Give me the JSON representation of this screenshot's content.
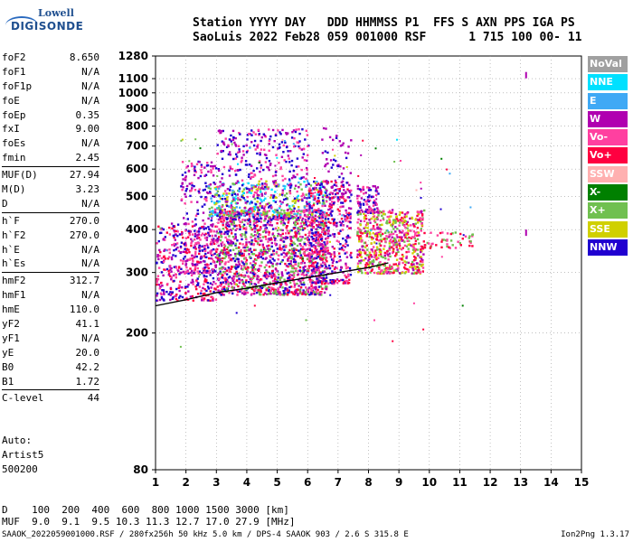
{
  "logo": {
    "line1": "Lowell",
    "line2": "DIGISONDE"
  },
  "header": {
    "line1": "Station YYYY DAY   DDD HHMMSS P1  FFS S AXN PPS IGA PS",
    "line2": "SaoLuis 2022 Feb28 059 001000 RSF      1 715 100 00- 11"
  },
  "params_group1": [
    {
      "k": "foF2",
      "v": "8.650"
    },
    {
      "k": "foF1",
      "v": "N/A"
    },
    {
      "k": "foF1p",
      "v": "N/A"
    },
    {
      "k": "foE",
      "v": "N/A"
    },
    {
      "k": "foEp",
      "v": "0.35"
    },
    {
      "k": "fxI",
      "v": "9.00"
    },
    {
      "k": "foEs",
      "v": "N/A"
    },
    {
      "k": "fmin",
      "v": "2.45"
    }
  ],
  "params_group2": [
    {
      "k": "MUF(D)",
      "v": "27.94"
    },
    {
      "k": "M(D)",
      "v": "3.23"
    },
    {
      "k": "D",
      "v": "N/A"
    }
  ],
  "params_group3": [
    {
      "k": "h`F",
      "v": "270.0"
    },
    {
      "k": "h`F2",
      "v": "270.0"
    },
    {
      "k": "h`E",
      "v": "N/A"
    },
    {
      "k": "h`Es",
      "v": "N/A"
    }
  ],
  "params_group4": [
    {
      "k": "hmF2",
      "v": "312.7"
    },
    {
      "k": "hmF1",
      "v": "N/A"
    },
    {
      "k": "hmE",
      "v": "110.0"
    },
    {
      "k": "yF2",
      "v": "41.1"
    },
    {
      "k": "yF1",
      "v": "N/A"
    },
    {
      "k": "yE",
      "v": "20.0"
    },
    {
      "k": "B0",
      "v": "42.2"
    },
    {
      "k": "B1",
      "v": "1.72"
    }
  ],
  "params_group5": [
    {
      "k": "C-level",
      "v": "44"
    }
  ],
  "auto": {
    "l1": "Auto:",
    "l2": "Artist5",
    "l3": "500200"
  },
  "legend": [
    {
      "label": "NoVal",
      "color": "#a0a0a0"
    },
    {
      "label": "NNE",
      "color": "#00e0ff"
    },
    {
      "label": "E",
      "color": "#3fa9f5"
    },
    {
      "label": "W",
      "color": "#b000b0"
    },
    {
      "label": "Vo-",
      "color": "#ff40a0"
    },
    {
      "label": "Vo+",
      "color": "#ff0040"
    },
    {
      "label": "SSW",
      "color": "#ffb0b0"
    },
    {
      "label": "X-",
      "color": "#008000"
    },
    {
      "label": "X+",
      "color": "#70c050"
    },
    {
      "label": "SSE",
      "color": "#d0d000"
    },
    {
      "label": "NNW",
      "color": "#2000d0"
    }
  ],
  "bottom": {
    "line1": "D    100  200  400  600  800 1000 1500 3000 [km]",
    "line2": "MUF  9.0  9.1  9.5 10.3 11.3 12.7 17.0 27.9 [MHz]"
  },
  "footer": {
    "left": "SAAOK_2022059001000.RSF / 280fx256h 50 kHz 5.0 km / DPS-4 SAAOK 903 / 2.6 S 315.8 E",
    "right": "Ion2Png 1.3.17"
  },
  "chart_data": {
    "type": "scatter",
    "title": "",
    "xlabel": "",
    "ylabel": "",
    "xlim": [
      1,
      15
    ],
    "ylim": [
      80,
      1280
    ],
    "x_ticks": [
      1,
      2,
      3,
      4,
      5,
      6,
      7,
      8,
      9,
      10,
      11,
      12,
      13,
      14,
      15
    ],
    "y_ticks": [
      80,
      200,
      300,
      400,
      500,
      600,
      700,
      800,
      900,
      1000,
      1100,
      1280
    ],
    "y_tick_labels": [
      "80",
      "200",
      "300",
      "400",
      "500",
      "600",
      "700",
      "800",
      "900",
      "1000",
      "1100",
      "1280"
    ],
    "y_scale": "log",
    "grid": true,
    "trace": {
      "x": [
        1.0,
        2.0,
        3.0,
        4.0,
        5.0,
        6.0,
        7.0,
        8.0,
        8.65
      ],
      "y": [
        240,
        250,
        262,
        270,
        280,
        290,
        300,
        310,
        320
      ]
    },
    "clusters": [
      {
        "x0": 1.0,
        "x1": 3.0,
        "y0": 250,
        "y1": 420,
        "colors": [
          "#2000d0",
          "#ff40a0",
          "#ff0040",
          "#b000b0"
        ],
        "n": 400
      },
      {
        "x0": 1.8,
        "x1": 3.0,
        "y0": 300,
        "y1": 640,
        "colors": [
          "#b000b0",
          "#2000d0",
          "#ff40a0"
        ],
        "n": 220
      },
      {
        "x0": 3.0,
        "x1": 6.6,
        "y0": 260,
        "y1": 460,
        "colors": [
          "#ff40a0",
          "#b000b0",
          "#ff0040",
          "#2000d0",
          "#70c050"
        ],
        "n": 1500
      },
      {
        "x0": 2.7,
        "x1": 6.6,
        "y0": 440,
        "y1": 560,
        "colors": [
          "#d0d000",
          "#70c050",
          "#3fa9f5",
          "#00e0ff"
        ],
        "n": 300
      },
      {
        "x0": 3.0,
        "x1": 6.0,
        "y0": 430,
        "y1": 790,
        "colors": [
          "#b000b0",
          "#ff40a0",
          "#2000d0"
        ],
        "n": 420
      },
      {
        "x0": 6.0,
        "x1": 7.4,
        "y0": 280,
        "y1": 560,
        "colors": [
          "#ff40a0",
          "#b000b0",
          "#ff0040",
          "#2000d0"
        ],
        "n": 450
      },
      {
        "x0": 6.4,
        "x1": 7.4,
        "y0": 500,
        "y1": 800,
        "colors": [
          "#b000b0",
          "#2000d0"
        ],
        "n": 60
      },
      {
        "x0": 7.6,
        "x1": 9.8,
        "y0": 300,
        "y1": 460,
        "colors": [
          "#ff40a0",
          "#ff0040",
          "#b000b0",
          "#d0d000",
          "#70c050"
        ],
        "n": 620
      },
      {
        "x0": 7.6,
        "x1": 8.3,
        "y0": 450,
        "y1": 540,
        "colors": [
          "#b000b0",
          "#ff40a0",
          "#2000d0"
        ],
        "n": 90
      },
      {
        "x0": 9.8,
        "x1": 11.4,
        "y0": 355,
        "y1": 395,
        "colors": [
          "#ff0040",
          "#ff40a0",
          "#70c050"
        ],
        "n": 50
      }
    ]
  }
}
